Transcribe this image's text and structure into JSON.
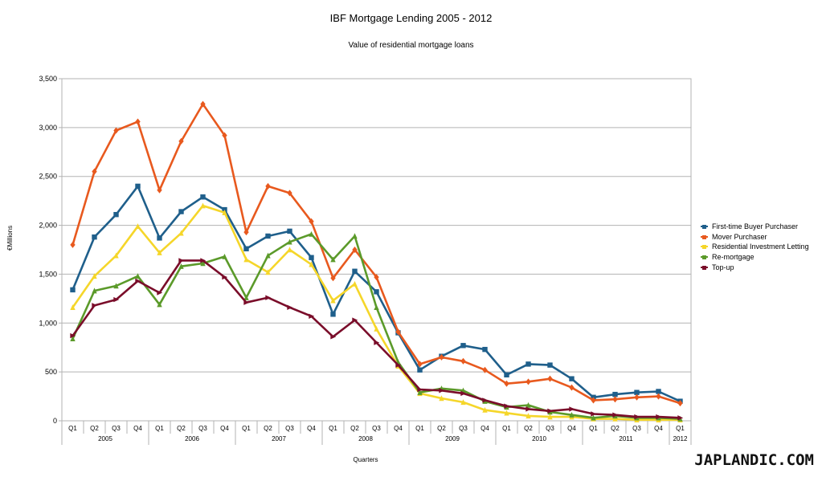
{
  "chart_data": {
    "type": "line",
    "title": "IBF Mortgage Lending 2005 - 2012",
    "subtitle": "Value of residential mortgage loans",
    "xlabel": "Quarters",
    "ylabel": "€Millions",
    "ylim": [
      0,
      3500
    ],
    "yticks": [
      "0",
      "500",
      "1,000",
      "1,500",
      "2,000",
      "2,500",
      "3,000",
      "3,500"
    ],
    "ytick_values": [
      0,
      500,
      1000,
      1500,
      2000,
      2500,
      3000,
      3500
    ],
    "grid": true,
    "legend_position": "right",
    "categories": [
      "Q1",
      "Q2",
      "Q3",
      "Q4",
      "Q1",
      "Q2",
      "Q3",
      "Q4",
      "Q1",
      "Q2",
      "Q3",
      "Q4",
      "Q1",
      "Q2",
      "Q3",
      "Q4",
      "Q1",
      "Q2",
      "Q3",
      "Q4",
      "Q1",
      "Q2",
      "Q3",
      "Q4",
      "Q1",
      "Q2",
      "Q3",
      "Q4",
      "Q1"
    ],
    "years": [
      {
        "label": "2005",
        "quarters": 4
      },
      {
        "label": "2006",
        "quarters": 4
      },
      {
        "label": "2007",
        "quarters": 4
      },
      {
        "label": "2008",
        "quarters": 4
      },
      {
        "label": "2009",
        "quarters": 4
      },
      {
        "label": "2010",
        "quarters": 4
      },
      {
        "label": "2011",
        "quarters": 4
      },
      {
        "label": "2012",
        "quarters": 1
      }
    ],
    "series": [
      {
        "name": "First-time Buyer Purchaser",
        "color": "#1f5f8b",
        "marker": "square",
        "values": [
          1340,
          1880,
          2110,
          2400,
          1870,
          2140,
          2290,
          2160,
          1760,
          1890,
          1940,
          1670,
          1090,
          1530,
          1320,
          900,
          520,
          660,
          770,
          730,
          470,
          580,
          570,
          430,
          240,
          270,
          290,
          300,
          200
        ]
      },
      {
        "name": "Mover Purchaser",
        "color": "#e8591e",
        "marker": "diamond",
        "values": [
          1800,
          2550,
          2970,
          3060,
          2360,
          2860,
          3240,
          2920,
          1930,
          2400,
          2330,
          2040,
          1460,
          1750,
          1470,
          910,
          580,
          650,
          610,
          520,
          380,
          400,
          430,
          340,
          210,
          220,
          240,
          250,
          180
        ]
      },
      {
        "name": "Residential Investment Letting",
        "color": "#f5d62a",
        "marker": "triangle",
        "values": [
          1160,
          1480,
          1690,
          1990,
          1720,
          1920,
          2200,
          2130,
          1650,
          1520,
          1750,
          1600,
          1230,
          1400,
          940,
          560,
          280,
          230,
          190,
          110,
          80,
          50,
          40,
          40,
          20,
          20,
          10,
          10,
          10
        ]
      },
      {
        "name": "Re-mortgage",
        "color": "#5b9a2a",
        "marker": "triangle",
        "values": [
          840,
          1330,
          1380,
          1480,
          1190,
          1580,
          1610,
          1680,
          1260,
          1690,
          1830,
          1910,
          1650,
          1890,
          1160,
          600,
          290,
          330,
          310,
          200,
          140,
          160,
          90,
          60,
          30,
          50,
          30,
          30,
          20
        ]
      },
      {
        "name": "Top-up",
        "color": "#7a0d2a",
        "marker": "triangle-right",
        "values": [
          870,
          1180,
          1240,
          1430,
          1310,
          1640,
          1640,
          1470,
          1210,
          1260,
          1160,
          1070,
          860,
          1030,
          800,
          570,
          320,
          310,
          280,
          210,
          150,
          120,
          100,
          120,
          70,
          60,
          40,
          40,
          30
        ]
      }
    ]
  },
  "watermark": "JAPLANDIC.COM"
}
